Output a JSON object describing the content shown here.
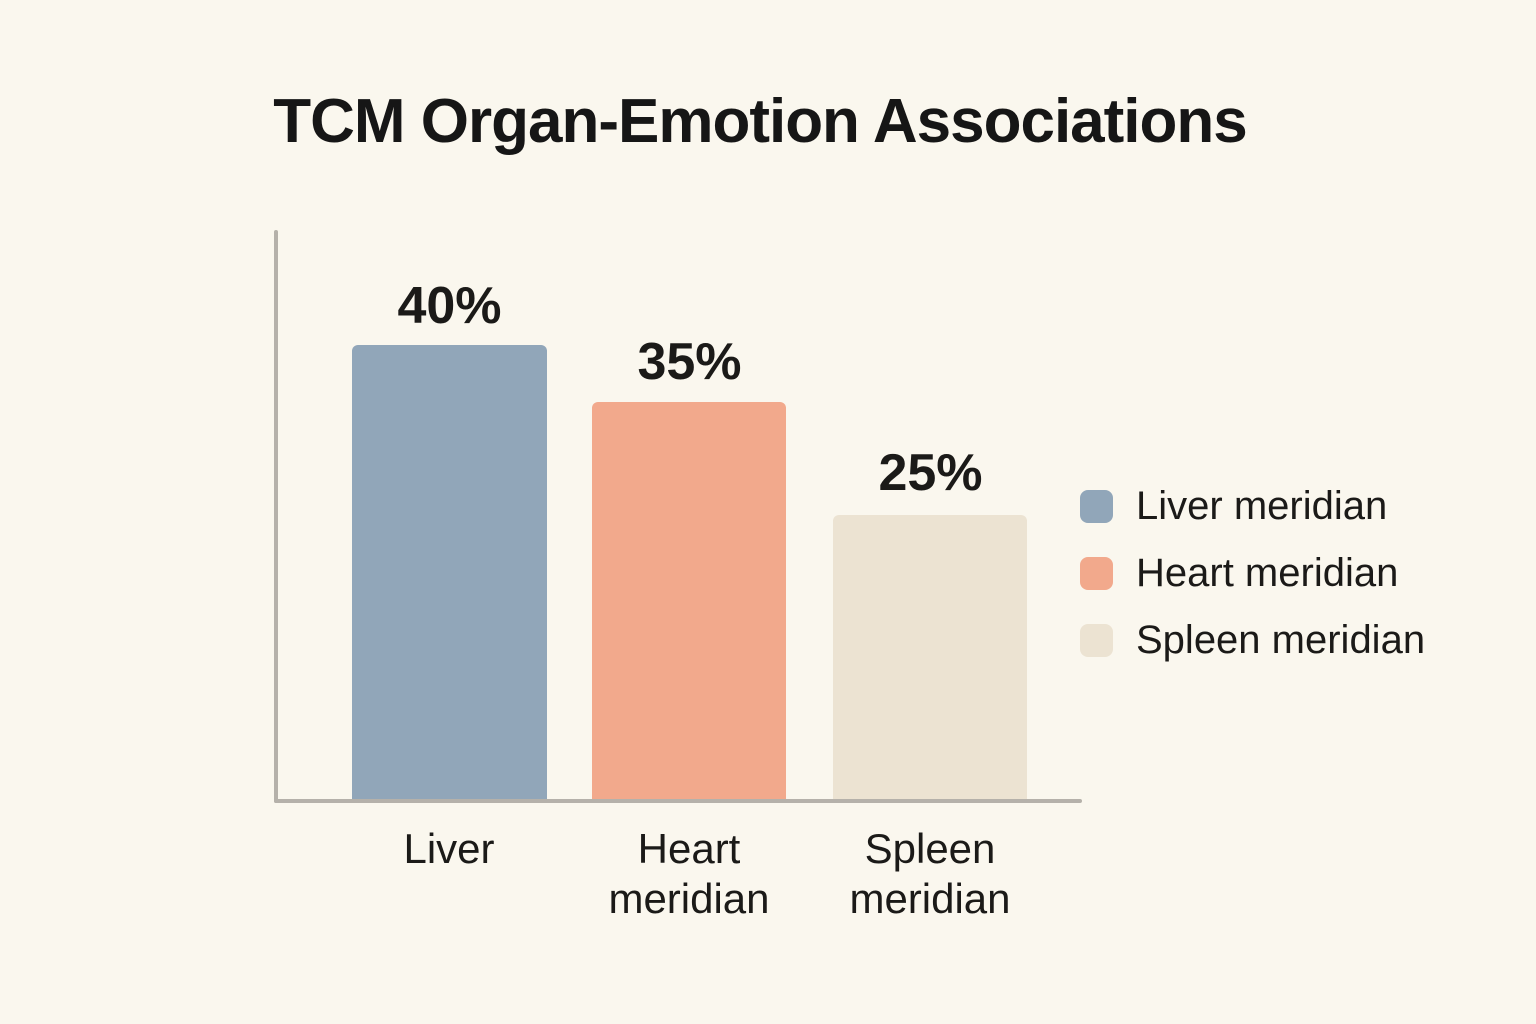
{
  "title": "TCM Organ-Emotion Associations",
  "colors": {
    "background": "#faf7ee",
    "axis": "#b5b1aa",
    "text": "#1b1a18"
  },
  "chart_data": {
    "type": "bar",
    "title": "TCM Organ-Emotion Associations",
    "categories": [
      "Liver",
      "Heart meridian",
      "Spleen meridian"
    ],
    "values": [
      40,
      35,
      25
    ],
    "value_labels": [
      "40%",
      "35%",
      "25%"
    ],
    "unit": "percent",
    "ylim": [
      0,
      50
    ],
    "grid": false,
    "legend_position": "right",
    "legend_entries": [
      "Liver meridian",
      "Heart meridian",
      "Spleen meridian"
    ],
    "series_colors": [
      "#91a6b9",
      "#f2a98c",
      "#ece3d2"
    ],
    "xlabel": "",
    "ylabel": ""
  },
  "bars": [
    {
      "label_line1": "Liver",
      "label_line2": "",
      "value": 40,
      "value_label": "40%",
      "color": "#91a6b9"
    },
    {
      "label_line1": "Heart",
      "label_line2": "meridian",
      "value": 35,
      "value_label": "35%",
      "color": "#f2a98c"
    },
    {
      "label_line1": "Spleen",
      "label_line2": "meridian",
      "value": 25,
      "value_label": "25%",
      "color": "#ece3d2"
    }
  ],
  "legend": {
    "items": [
      {
        "label": "Liver meridian",
        "color": "#91a6b9"
      },
      {
        "label": "Heart meridian",
        "color": "#f2a98c"
      },
      {
        "label": "Spleen meridian",
        "color": "#ece3d2"
      }
    ]
  }
}
